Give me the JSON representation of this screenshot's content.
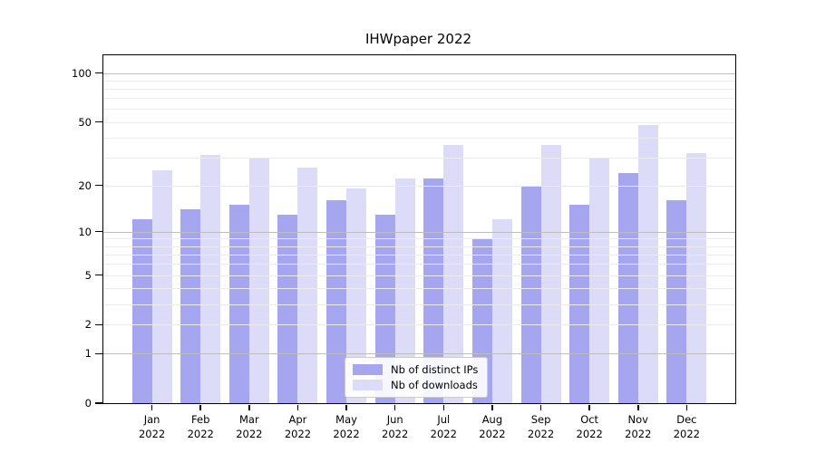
{
  "title": "IHWpaper 2022",
  "colors": {
    "distinct_ips_bar": "#a5a5f0",
    "downloads_bar": "#dcdcf8",
    "grid_major": "#bdbdbd",
    "grid_minor": "#ebebeb",
    "spine": "#000000"
  },
  "legend": {
    "items": [
      {
        "label": "Nb of distinct IPs",
        "color": "#a5a5f0"
      },
      {
        "label": "Nb of downloads",
        "color": "#dcdcf8"
      }
    ]
  },
  "axes": {
    "y_tick_labels": [
      "0",
      "1",
      "2",
      "5",
      "10",
      "20",
      "50",
      "100"
    ],
    "x_months": [
      "Jan",
      "Feb",
      "Mar",
      "Apr",
      "May",
      "Jun",
      "Jul",
      "Aug",
      "Sep",
      "Oct",
      "Nov",
      "Dec"
    ],
    "x_year": "2022"
  },
  "chart_data": {
    "type": "bar",
    "title": "IHWpaper 2022",
    "categories": [
      "Jan 2022",
      "Feb 2022",
      "Mar 2022",
      "Apr 2022",
      "May 2022",
      "Jun 2022",
      "Jul 2022",
      "Aug 2022",
      "Sep 2022",
      "Oct 2022",
      "Nov 2022",
      "Dec 2022"
    ],
    "series": [
      {
        "name": "Nb of distinct IPs",
        "color": "#a5a5f0",
        "values": [
          12,
          14,
          15,
          13,
          16,
          13,
          22,
          9,
          20,
          15,
          24,
          16
        ]
      },
      {
        "name": "Nb of downloads",
        "color": "#dcdcf8",
        "values": [
          25,
          31,
          30,
          26,
          19,
          22,
          36,
          12,
          36,
          30,
          48,
          32
        ]
      }
    ],
    "yscale": "log10(1+x)",
    "yticks": [
      0,
      1,
      2,
      5,
      10,
      20,
      50,
      100
    ],
    "ylim": [
      0,
      127
    ],
    "grid": "both",
    "grid_above_bars": true,
    "legend_position": "lower center"
  }
}
